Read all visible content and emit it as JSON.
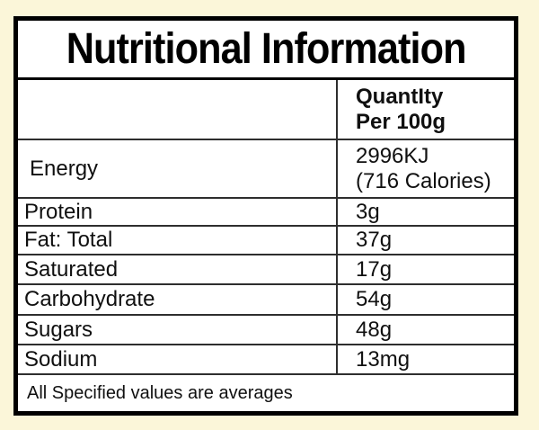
{
  "colors": {
    "page_background": "#FBF6D9",
    "label_background": "#FFFFFF",
    "border": "#000000",
    "grid_line": "#2E2E2E",
    "text": "#101010"
  },
  "label": {
    "title": "Nutritional Information",
    "column_header": {
      "line1": "QuantIty",
      "line2": "Per 100g"
    },
    "rows": [
      {
        "label": "Energy",
        "value_lines": [
          "2996KJ",
          "(716 Calories)"
        ]
      },
      {
        "label": "Protein",
        "value": "3g"
      },
      {
        "label": "Fat: Total",
        "value": "37g"
      },
      {
        "label": "Saturated",
        "value": "17g"
      },
      {
        "label": "Carbohydrate",
        "value": "54g"
      },
      {
        "label": "Sugars",
        "value": "48g"
      },
      {
        "label": "Sodium",
        "value": "13mg"
      }
    ],
    "footer_note": "All Specified values are averages"
  }
}
